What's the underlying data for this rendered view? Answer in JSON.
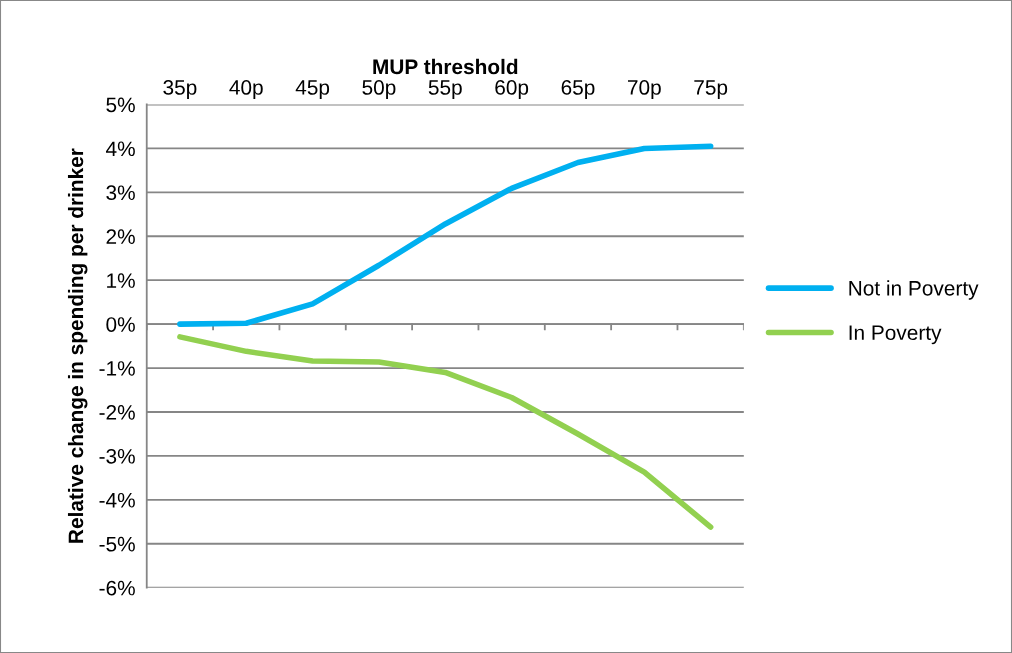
{
  "chart_data": {
    "type": "line",
    "xlabel": "MUP threshold",
    "ylabel": "Relative change in spending per drinker",
    "categories": [
      "35p",
      "40p",
      "45p",
      "50p",
      "55p",
      "60p",
      "65p",
      "70p",
      "75p"
    ],
    "series": [
      {
        "name": "Not in Poverty",
        "color": "#00b0f0",
        "values": [
          0,
          0.02,
          0.46,
          1.34,
          2.28,
          3.09,
          3.68,
          4.0,
          4.05
        ]
      },
      {
        "name": "In Poverty",
        "color": "#92d050",
        "values": [
          -0.29,
          -0.62,
          -0.84,
          -0.86,
          -1.1,
          -1.67,
          -2.5,
          -3.37,
          -4.62
        ]
      }
    ],
    "ylim": [
      -6,
      5
    ],
    "yticks": [
      {
        "value": -6,
        "label": "-6%"
      },
      {
        "value": -5,
        "label": "-5%"
      },
      {
        "value": -4,
        "label": "-4%"
      },
      {
        "value": -3,
        "label": "-3%"
      },
      {
        "value": -2,
        "label": "-2%"
      },
      {
        "value": -1,
        "label": "-1%"
      },
      {
        "value": 0,
        "label": "0%"
      },
      {
        "value": 1,
        "label": "1%"
      },
      {
        "value": 2,
        "label": "2%"
      },
      {
        "value": 3,
        "label": "3%"
      },
      {
        "value": 4,
        "label": "4%"
      },
      {
        "value": 5,
        "label": "5%"
      }
    ],
    "grid": "y",
    "legend": "right",
    "marker": "none",
    "line_style": "solid"
  }
}
